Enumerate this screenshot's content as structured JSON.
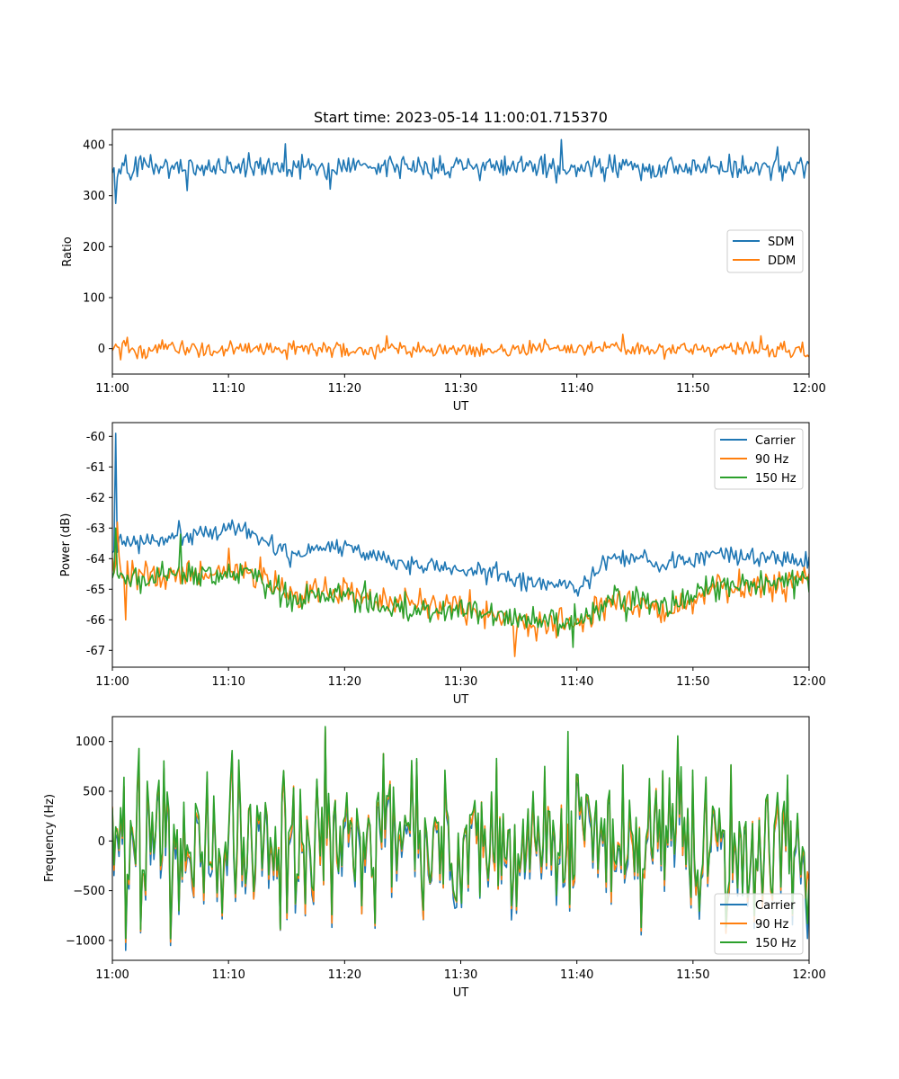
{
  "chart_data": [
    {
      "type": "line",
      "title": "Start time: 2023-05-14 11:00:01.715370",
      "xlabel": "UT",
      "ylabel": "Ratio",
      "xlim_minutes": [
        0,
        60
      ],
      "ylim": [
        -50,
        430
      ],
      "xticks": [
        "11:00",
        "11:10",
        "11:20",
        "11:30",
        "11:40",
        "11:50",
        "12:00"
      ],
      "yticks": [
        "0",
        "100",
        "200",
        "300",
        "400"
      ],
      "ytick_values": [
        0,
        100,
        200,
        300,
        400
      ],
      "legend_position": "center-right",
      "series": [
        {
          "name": "SDM",
          "color": "#1f77b4",
          "mean": 357,
          "noise": 14,
          "spikes": [
            [
              0.0,
              345
            ],
            [
              0.3,
              285
            ],
            [
              1.1,
              380
            ],
            [
              6.4,
              310
            ],
            [
              14.9,
              402
            ],
            [
              18.8,
              313
            ],
            [
              38.6,
              410
            ],
            [
              57.3,
              396
            ]
          ]
        },
        {
          "name": "DDM",
          "color": "#ff7f0e",
          "mean": -1,
          "noise": 9,
          "spikes": [
            [
              0.7,
              -22
            ],
            [
              1.3,
              22
            ],
            [
              23.6,
              25
            ],
            [
              43.9,
              28
            ],
            [
              55.8,
              25
            ],
            [
              59.9,
              -13
            ]
          ]
        }
      ]
    },
    {
      "type": "line",
      "title": "",
      "xlabel": "UT",
      "ylabel": "Power (dB)",
      "xlim_minutes": [
        0,
        60
      ],
      "ylim": [
        -67.55,
        -59.55
      ],
      "xticks": [
        "11:00",
        "11:10",
        "11:20",
        "11:30",
        "11:40",
        "11:50",
        "12:00"
      ],
      "yticks": [
        "-60",
        "-61",
        "-62",
        "-63",
        "-64",
        "-65",
        "-66",
        "-67"
      ],
      "ytick_values": [
        -60,
        -61,
        -62,
        -63,
        -64,
        -65,
        -66,
        -67
      ],
      "legend_position": "upper-right",
      "series": [
        {
          "name": "Carrier",
          "color": "#1f77b4",
          "noise": 0.25,
          "spikes": [
            [
              0.3,
              -59.9
            ]
          ],
          "trend": [
            [
              0,
              -63.6
            ],
            [
              5,
              -63.3
            ],
            [
              11,
              -63.0
            ],
            [
              15,
              -63.8
            ],
            [
              20,
              -63.6
            ],
            [
              25,
              -64.2
            ],
            [
              30,
              -64.3
            ],
            [
              36,
              -64.8
            ],
            [
              40,
              -65.0
            ],
            [
              43,
              -64.0
            ],
            [
              48,
              -64.2
            ],
            [
              52,
              -63.8
            ],
            [
              60,
              -64.0
            ]
          ]
        },
        {
          "name": "90 Hz",
          "color": "#ff7f0e",
          "noise": 0.35,
          "spikes": [
            [
              0.4,
              -62.8
            ],
            [
              1.2,
              -66.0
            ],
            [
              34.7,
              -67.2
            ]
          ],
          "trend": [
            [
              0,
              -64.4
            ],
            [
              5,
              -64.6
            ],
            [
              11,
              -64.3
            ],
            [
              15,
              -65.1
            ],
            [
              20,
              -65.1
            ],
            [
              25,
              -65.4
            ],
            [
              30,
              -65.5
            ],
            [
              35,
              -66.1
            ],
            [
              40,
              -66.2
            ],
            [
              43,
              -65.4
            ],
            [
              48,
              -65.7
            ],
            [
              52,
              -65.0
            ],
            [
              60,
              -64.8
            ]
          ]
        },
        {
          "name": "150 Hz",
          "color": "#2ca02c",
          "noise": 0.35,
          "spikes": [
            [
              0.3,
              -63.0
            ],
            [
              5.8,
              -63.2
            ],
            [
              39.6,
              -66.9
            ]
          ],
          "trend": [
            [
              0,
              -64.5
            ],
            [
              5,
              -64.6
            ],
            [
              11,
              -64.4
            ],
            [
              15,
              -65.3
            ],
            [
              20,
              -65.2
            ],
            [
              25,
              -65.6
            ],
            [
              30,
              -65.7
            ],
            [
              35,
              -66.0
            ],
            [
              40,
              -66.1
            ],
            [
              43,
              -65.4
            ],
            [
              48,
              -65.5
            ],
            [
              52,
              -64.9
            ],
            [
              60,
              -64.8
            ]
          ]
        }
      ]
    },
    {
      "type": "line",
      "title": "",
      "xlabel": "UT",
      "ylabel": "Frequency (Hz)",
      "xlim_minutes": [
        0,
        60
      ],
      "ylim": [
        -1200,
        1250
      ],
      "xticks": [
        "11:00",
        "11:10",
        "11:20",
        "11:30",
        "11:40",
        "11:50",
        "12:00"
      ],
      "yticks": [
        "−1000",
        "−500",
        "0",
        "500",
        "1000"
      ],
      "ytick_values": [
        -1000,
        -500,
        0,
        500,
        1000
      ],
      "legend_position": "lower-right",
      "series": [
        {
          "name": "Carrier",
          "color": "#1f77b4",
          "offset": -70,
          "amplitude": 430,
          "spikes": [
            [
              1.1,
              -1100
            ],
            [
              18.3,
              1100
            ],
            [
              59.9,
              -980
            ]
          ]
        },
        {
          "name": "90 Hz",
          "color": "#ff7f0e",
          "offset": -30,
          "amplitude": 430,
          "spikes": [
            [
              1.1,
              -1020
            ],
            [
              18.3,
              1130
            ]
          ]
        },
        {
          "name": "150 Hz",
          "color": "#2ca02c",
          "offset": 10,
          "amplitude": 430,
          "spikes": [
            [
              1.1,
              -980
            ],
            [
              18.3,
              1150
            ],
            [
              39.2,
              1100
            ],
            [
              59.9,
              -830
            ]
          ]
        }
      ]
    }
  ]
}
